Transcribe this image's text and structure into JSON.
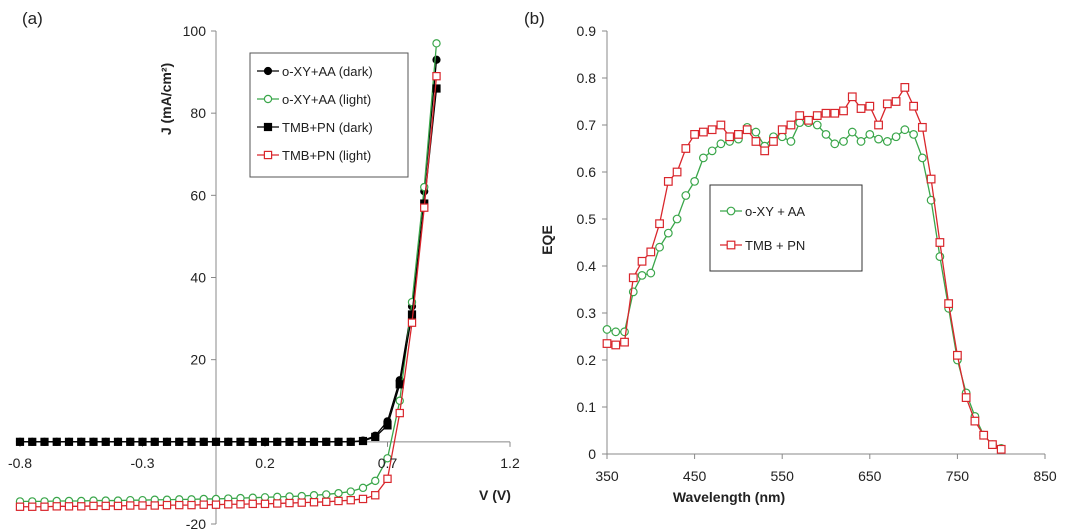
{
  "colors": {
    "black": "#000000",
    "green": "#3aa64a",
    "red": "#d9262c"
  },
  "chart_data": [
    {
      "panel_label": "(a)",
      "type": "line",
      "xlabel": "V (V)",
      "ylabel": "J (mA/cm²)",
      "xlim": [
        -0.8,
        1.2
      ],
      "ylim": [
        -20,
        100
      ],
      "xticks": [
        "-0.8",
        "-0.3",
        "0.2",
        "0.7",
        "1.2"
      ],
      "yticks": [
        "-20",
        "20",
        "40",
        "60",
        "80",
        "100"
      ],
      "legend_position": "top-right",
      "series": [
        {
          "name": "o-XY+AA (dark)",
          "color": "#000000",
          "marker": "filled-circle",
          "x": [
            -0.8,
            -0.75,
            -0.7,
            -0.65,
            -0.6,
            -0.55,
            -0.5,
            -0.45,
            -0.4,
            -0.35,
            -0.3,
            -0.25,
            -0.2,
            -0.15,
            -0.1,
            -0.05,
            0,
            0.05,
            0.1,
            0.15,
            0.2,
            0.25,
            0.3,
            0.35,
            0.4,
            0.45,
            0.5,
            0.55,
            0.6,
            0.65,
            0.7,
            0.75,
            0.8,
            0.85,
            0.9
          ],
          "y": [
            0,
            0,
            0,
            0,
            0,
            0,
            0,
            0,
            0,
            0,
            0,
            0,
            0,
            0,
            0,
            0,
            0,
            0,
            0,
            0,
            0,
            0,
            0,
            0,
            0,
            0,
            0,
            0,
            0.3,
            1.5,
            5,
            15,
            33,
            61,
            93
          ]
        },
        {
          "name": "o-XY+AA (light)",
          "color": "#3aa64a",
          "marker": "open-circle",
          "x": [
            -0.8,
            -0.75,
            -0.7,
            -0.65,
            -0.6,
            -0.55,
            -0.5,
            -0.45,
            -0.4,
            -0.35,
            -0.3,
            -0.25,
            -0.2,
            -0.15,
            -0.1,
            -0.05,
            0,
            0.05,
            0.1,
            0.15,
            0.2,
            0.25,
            0.3,
            0.35,
            0.4,
            0.45,
            0.5,
            0.55,
            0.6,
            0.65,
            0.7,
            0.75,
            0.8,
            0.85,
            0.9
          ],
          "y": [
            -14.5,
            -14.5,
            -14.5,
            -14.4,
            -14.4,
            -14.4,
            -14.3,
            -14.3,
            -14.3,
            -14.2,
            -14.2,
            -14.1,
            -14.1,
            -14.0,
            -14.0,
            -13.9,
            -13.9,
            -13.8,
            -13.7,
            -13.6,
            -13.5,
            -13.4,
            -13.3,
            -13.2,
            -13.0,
            -12.8,
            -12.5,
            -12.1,
            -11.2,
            -9.5,
            -4,
            10,
            34,
            62,
            97
          ]
        },
        {
          "name": "TMB+PN (dark)",
          "color": "#000000",
          "marker": "filled-square",
          "x": [
            -0.8,
            -0.75,
            -0.7,
            -0.65,
            -0.6,
            -0.55,
            -0.5,
            -0.45,
            -0.4,
            -0.35,
            -0.3,
            -0.25,
            -0.2,
            -0.15,
            -0.1,
            -0.05,
            0,
            0.05,
            0.1,
            0.15,
            0.2,
            0.25,
            0.3,
            0.35,
            0.4,
            0.45,
            0.5,
            0.55,
            0.6,
            0.65,
            0.7,
            0.75,
            0.8,
            0.85,
            0.9
          ],
          "y": [
            0,
            0,
            0,
            0,
            0,
            0,
            0,
            0,
            0,
            0,
            0,
            0,
            0,
            0,
            0,
            0,
            0,
            0,
            0,
            0,
            0,
            0,
            0,
            0,
            0,
            0,
            0,
            0,
            0.2,
            1.2,
            4,
            14,
            31,
            58,
            86
          ]
        },
        {
          "name": "TMB+PN (light)",
          "color": "#d9262c",
          "marker": "open-square",
          "x": [
            -0.8,
            -0.75,
            -0.7,
            -0.65,
            -0.6,
            -0.55,
            -0.5,
            -0.45,
            -0.4,
            -0.35,
            -0.3,
            -0.25,
            -0.2,
            -0.15,
            -0.1,
            -0.05,
            0,
            0.05,
            0.1,
            0.15,
            0.2,
            0.25,
            0.3,
            0.35,
            0.4,
            0.45,
            0.5,
            0.55,
            0.6,
            0.65,
            0.7,
            0.75,
            0.8,
            0.85,
            0.9
          ],
          "y": [
            -15.8,
            -15.8,
            -15.8,
            -15.7,
            -15.7,
            -15.7,
            -15.6,
            -15.6,
            -15.6,
            -15.5,
            -15.5,
            -15.5,
            -15.4,
            -15.4,
            -15.4,
            -15.3,
            -15.3,
            -15.2,
            -15.2,
            -15.1,
            -15.1,
            -15.0,
            -14.9,
            -14.8,
            -14.7,
            -14.6,
            -14.4,
            -14.2,
            -13.9,
            -13.0,
            -9,
            7,
            29,
            57,
            89
          ]
        }
      ]
    },
    {
      "panel_label": "(b)",
      "type": "line",
      "xlabel": "Wavelength (nm)",
      "ylabel": "EQE",
      "xlim": [
        350,
        850
      ],
      "ylim": [
        0,
        0.9
      ],
      "xticks": [
        "350",
        "450",
        "550",
        "650",
        "750",
        "850"
      ],
      "yticks": [
        "0",
        "0.1",
        "0.2",
        "0.3",
        "0.4",
        "0.5",
        "0.6",
        "0.7",
        "0.8",
        "0.9"
      ],
      "legend_position": "center-left",
      "series": [
        {
          "name": "o-XY + AA",
          "color": "#3aa64a",
          "marker": "open-circle",
          "x": [
            350,
            360,
            370,
            380,
            390,
            400,
            410,
            420,
            430,
            440,
            450,
            460,
            470,
            480,
            490,
            500,
            510,
            520,
            530,
            540,
            550,
            560,
            570,
            580,
            590,
            600,
            610,
            620,
            630,
            640,
            650,
            660,
            670,
            680,
            690,
            700,
            710,
            720,
            730,
            740,
            750,
            760,
            770,
            780,
            790,
            800
          ],
          "y": [
            0.265,
            0.26,
            0.26,
            0.345,
            0.38,
            0.385,
            0.44,
            0.47,
            0.5,
            0.55,
            0.58,
            0.63,
            0.645,
            0.66,
            0.665,
            0.67,
            0.695,
            0.685,
            0.655,
            0.675,
            0.675,
            0.665,
            0.705,
            0.705,
            0.7,
            0.68,
            0.66,
            0.665,
            0.685,
            0.665,
            0.68,
            0.67,
            0.665,
            0.675,
            0.69,
            0.68,
            0.63,
            0.54,
            0.42,
            0.31,
            0.2,
            0.13,
            0.08,
            0.04,
            0.02,
            0.012
          ]
        },
        {
          "name": "TMB + PN",
          "color": "#d9262c",
          "marker": "open-square",
          "x": [
            350,
            360,
            370,
            380,
            390,
            400,
            410,
            420,
            430,
            440,
            450,
            460,
            470,
            480,
            490,
            500,
            510,
            520,
            530,
            540,
            550,
            560,
            570,
            580,
            590,
            600,
            610,
            620,
            630,
            640,
            650,
            660,
            670,
            680,
            690,
            700,
            710,
            720,
            730,
            740,
            750,
            760,
            770,
            780,
            790,
            800
          ],
          "y": [
            0.235,
            0.232,
            0.238,
            0.375,
            0.41,
            0.43,
            0.49,
            0.58,
            0.6,
            0.65,
            0.68,
            0.685,
            0.69,
            0.7,
            0.675,
            0.68,
            0.69,
            0.665,
            0.645,
            0.665,
            0.69,
            0.7,
            0.72,
            0.71,
            0.72,
            0.725,
            0.725,
            0.73,
            0.76,
            0.735,
            0.74,
            0.7,
            0.745,
            0.75,
            0.78,
            0.74,
            0.695,
            0.585,
            0.45,
            0.32,
            0.21,
            0.12,
            0.07,
            0.04,
            0.02,
            0.01
          ]
        }
      ]
    }
  ]
}
